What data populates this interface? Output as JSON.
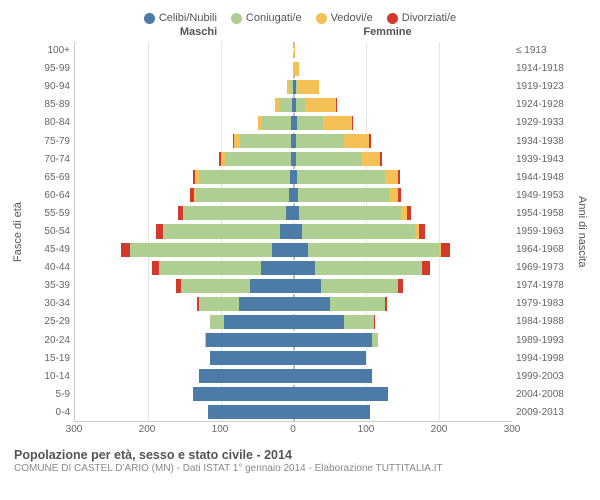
{
  "legend": [
    {
      "label": "Celibi/Nubili",
      "color": "#4d7ba8"
    },
    {
      "label": "Coniugati/e",
      "color": "#aecf91"
    },
    {
      "label": "Vedovi/e",
      "color": "#f5c056"
    },
    {
      "label": "Divorziati/e",
      "color": "#d23a2e"
    }
  ],
  "side_labels": {
    "male": "Maschi",
    "female": "Femmine"
  },
  "y_title_left": "Fasce di età",
  "y_title_right": "Anni di nascita",
  "age_labels": [
    "100+",
    "95-99",
    "90-94",
    "85-89",
    "80-84",
    "75-79",
    "70-74",
    "65-69",
    "60-64",
    "55-59",
    "50-54",
    "45-49",
    "40-44",
    "35-39",
    "30-34",
    "25-29",
    "20-24",
    "15-19",
    "10-14",
    "5-9",
    "0-4"
  ],
  "birth_labels": [
    "≤ 1913",
    "1914-1918",
    "1919-1923",
    "1924-1928",
    "1929-1933",
    "1934-1938",
    "1939-1943",
    "1944-1948",
    "1949-1953",
    "1954-1958",
    "1959-1963",
    "1964-1968",
    "1969-1973",
    "1974-1978",
    "1979-1983",
    "1984-1988",
    "1989-1993",
    "1994-1998",
    "1999-2003",
    "2004-2008",
    "2009-2013"
  ],
  "x_max": 300,
  "x_ticks": [
    300,
    200,
    100,
    0,
    100,
    200,
    300
  ],
  "colors": {
    "single": "#4d7ba8",
    "married": "#aecf91",
    "widowed": "#f5c056",
    "divorced": "#d23a2e",
    "grid": "#e5e5e5",
    "background": "#ffffff"
  },
  "rows": [
    {
      "m": {
        "s": 0,
        "c": 0,
        "w": 0,
        "d": 0
      },
      "f": {
        "s": 0,
        "c": 0,
        "w": 2,
        "d": 0
      }
    },
    {
      "m": {
        "s": 0,
        "c": 0,
        "w": 1,
        "d": 0
      },
      "f": {
        "s": 0,
        "c": 0,
        "w": 8,
        "d": 0
      }
    },
    {
      "m": {
        "s": 1,
        "c": 4,
        "w": 4,
        "d": 0
      },
      "f": {
        "s": 3,
        "c": 2,
        "w": 30,
        "d": 0
      }
    },
    {
      "m": {
        "s": 2,
        "c": 18,
        "w": 6,
        "d": 0
      },
      "f": {
        "s": 4,
        "c": 12,
        "w": 42,
        "d": 1
      }
    },
    {
      "m": {
        "s": 3,
        "c": 40,
        "w": 6,
        "d": 0
      },
      "f": {
        "s": 5,
        "c": 35,
        "w": 40,
        "d": 2
      }
    },
    {
      "m": {
        "s": 4,
        "c": 70,
        "w": 8,
        "d": 1
      },
      "f": {
        "s": 4,
        "c": 65,
        "w": 35,
        "d": 2
      }
    },
    {
      "m": {
        "s": 4,
        "c": 90,
        "w": 6,
        "d": 2
      },
      "f": {
        "s": 4,
        "c": 90,
        "w": 25,
        "d": 2
      }
    },
    {
      "m": {
        "s": 5,
        "c": 125,
        "w": 5,
        "d": 3
      },
      "f": {
        "s": 5,
        "c": 120,
        "w": 18,
        "d": 3
      }
    },
    {
      "m": {
        "s": 6,
        "c": 128,
        "w": 3,
        "d": 5
      },
      "f": {
        "s": 6,
        "c": 125,
        "w": 12,
        "d": 5
      }
    },
    {
      "m": {
        "s": 10,
        "c": 140,
        "w": 2,
        "d": 7
      },
      "f": {
        "s": 8,
        "c": 140,
        "w": 8,
        "d": 6
      }
    },
    {
      "m": {
        "s": 18,
        "c": 160,
        "w": 1,
        "d": 10
      },
      "f": {
        "s": 12,
        "c": 155,
        "w": 5,
        "d": 8
      }
    },
    {
      "m": {
        "s": 30,
        "c": 195,
        "w": 0,
        "d": 12
      },
      "f": {
        "s": 20,
        "c": 180,
        "w": 3,
        "d": 12
      }
    },
    {
      "m": {
        "s": 45,
        "c": 140,
        "w": 0,
        "d": 10
      },
      "f": {
        "s": 30,
        "c": 145,
        "w": 2,
        "d": 10
      }
    },
    {
      "m": {
        "s": 60,
        "c": 95,
        "w": 0,
        "d": 6
      },
      "f": {
        "s": 38,
        "c": 105,
        "w": 1,
        "d": 7
      }
    },
    {
      "m": {
        "s": 75,
        "c": 55,
        "w": 0,
        "d": 2
      },
      "f": {
        "s": 50,
        "c": 75,
        "w": 0,
        "d": 3
      }
    },
    {
      "m": {
        "s": 95,
        "c": 20,
        "w": 0,
        "d": 0
      },
      "f": {
        "s": 70,
        "c": 40,
        "w": 0,
        "d": 1
      }
    },
    {
      "m": {
        "s": 120,
        "c": 2,
        "w": 0,
        "d": 0
      },
      "f": {
        "s": 108,
        "c": 8,
        "w": 0,
        "d": 0
      }
    },
    {
      "m": {
        "s": 115,
        "c": 0,
        "w": 0,
        "d": 0
      },
      "f": {
        "s": 100,
        "c": 0,
        "w": 0,
        "d": 0
      }
    },
    {
      "m": {
        "s": 130,
        "c": 0,
        "w": 0,
        "d": 0
      },
      "f": {
        "s": 108,
        "c": 0,
        "w": 0,
        "d": 0
      }
    },
    {
      "m": {
        "s": 138,
        "c": 0,
        "w": 0,
        "d": 0
      },
      "f": {
        "s": 130,
        "c": 0,
        "w": 0,
        "d": 0
      }
    },
    {
      "m": {
        "s": 118,
        "c": 0,
        "w": 0,
        "d": 0
      },
      "f": {
        "s": 105,
        "c": 0,
        "w": 0,
        "d": 0
      }
    }
  ],
  "footer": {
    "title": "Popolazione per età, sesso e stato civile - 2014",
    "subtitle": "COMUNE DI CASTEL D'ARIO (MN) - Dati ISTAT 1° gennaio 2014 - Elaborazione TUTTITALIA.IT"
  }
}
